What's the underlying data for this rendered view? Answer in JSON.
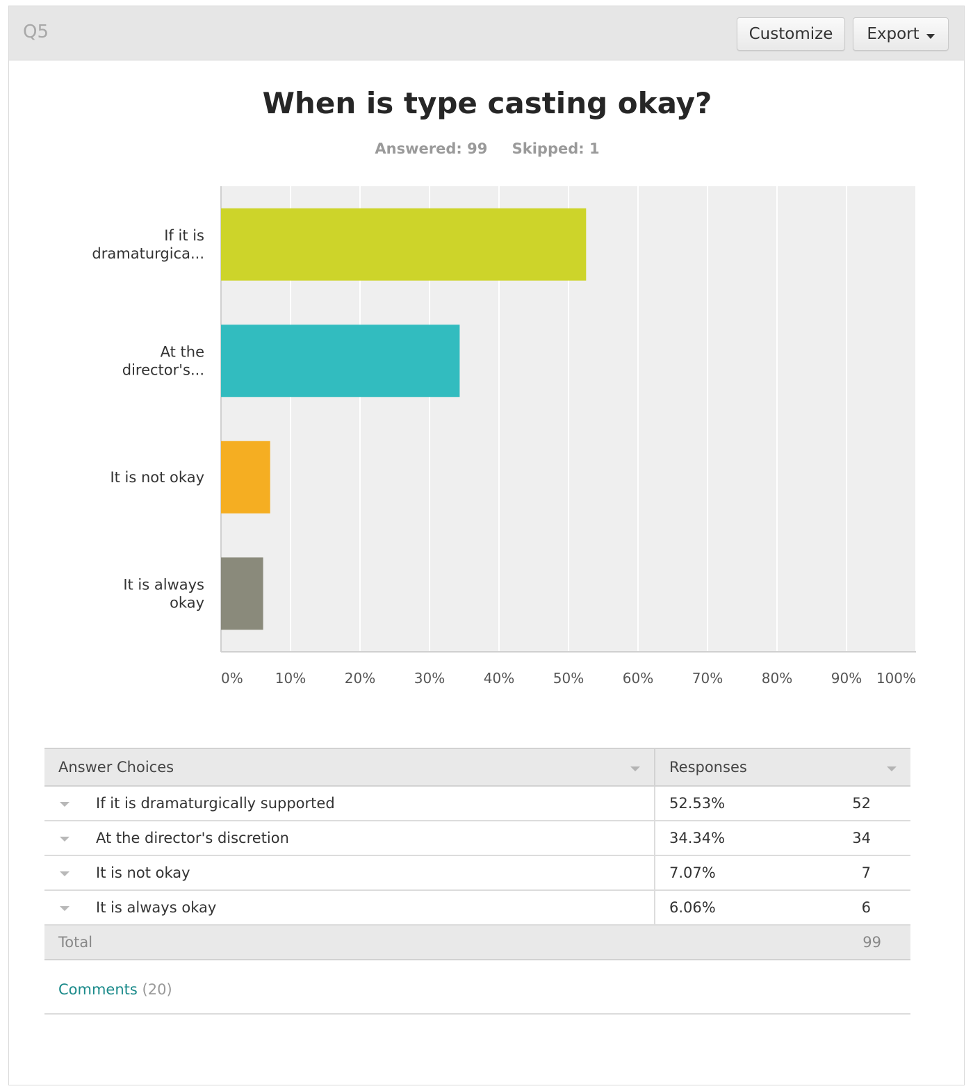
{
  "header": {
    "question_label": "Q5",
    "customize_label": "Customize",
    "export_label": "Export"
  },
  "summary": {
    "answered": "Answered: 99",
    "skipped": "Skipped: 1"
  },
  "chart_data": {
    "type": "bar",
    "orientation": "horizontal",
    "title": "When is type casting okay?",
    "categories": [
      [
        "If it is",
        "dramaturgica..."
      ],
      [
        "At the",
        "director's..."
      ],
      [
        "It is not okay"
      ],
      [
        "It is always",
        "okay"
      ]
    ],
    "values": [
      52.53,
      34.34,
      7.07,
      6.06
    ],
    "colors": [
      "#cdd42a",
      "#32bcbf",
      "#f5ae22",
      "#8a8a7b"
    ],
    "xlim": [
      0,
      100
    ],
    "ticks": [
      0,
      10,
      20,
      30,
      40,
      50,
      60,
      70,
      80,
      90,
      100
    ],
    "tick_labels": [
      "0%",
      "10%",
      "20%",
      "30%",
      "40%",
      "50%",
      "60%",
      "70%",
      "80%",
      "90%",
      "100%"
    ],
    "grid": true,
    "xlabel": "",
    "ylabel": ""
  },
  "table": {
    "col_choices": "Answer Choices",
    "col_responses": "Responses",
    "rows": [
      {
        "choice": "If it is dramaturgically supported",
        "percent": "52.53%",
        "count": "52"
      },
      {
        "choice": "At the director's discretion",
        "percent": "34.34%",
        "count": "34"
      },
      {
        "choice": "It is not okay",
        "percent": "7.07%",
        "count": "7"
      },
      {
        "choice": "It is always okay",
        "percent": "6.06%",
        "count": "6"
      }
    ],
    "total_label": "Total",
    "total_count": "99"
  },
  "comments": {
    "link_label": "Comments",
    "count": "(20)"
  }
}
